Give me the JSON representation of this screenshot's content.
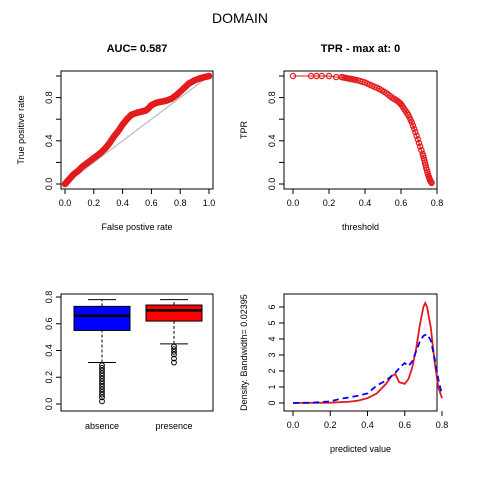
{
  "figure": {
    "title": "DOMAIN"
  },
  "chart_data": [
    {
      "id": "roc",
      "type": "line",
      "title": "AUC= 0.587",
      "xlabel": "False postive rate",
      "ylabel": "True positive rate",
      "xlim": [
        0,
        1
      ],
      "ylim": [
        0,
        1
      ],
      "xticks": [
        "0.0",
        "0.2",
        "0.4",
        "0.6",
        "0.8",
        "1.0"
      ],
      "yticks": [
        "0.0",
        "0.4",
        "0.8"
      ],
      "series": [
        {
          "role": "roc-curve",
          "color": "#e31a1c",
          "x": [
            0.0,
            0.02,
            0.04,
            0.06,
            0.09,
            0.12,
            0.16,
            0.2,
            0.24,
            0.28,
            0.31,
            0.34,
            0.37,
            0.4,
            0.43,
            0.46,
            0.5,
            0.53,
            0.56,
            0.58,
            0.6,
            0.63,
            0.66,
            0.7,
            0.74,
            0.78,
            0.82,
            0.86,
            0.9,
            0.94,
            0.97,
            1.0
          ],
          "y": [
            0.0,
            0.03,
            0.06,
            0.09,
            0.12,
            0.16,
            0.2,
            0.24,
            0.28,
            0.33,
            0.38,
            0.44,
            0.49,
            0.55,
            0.6,
            0.64,
            0.66,
            0.67,
            0.68,
            0.7,
            0.73,
            0.75,
            0.76,
            0.77,
            0.79,
            0.83,
            0.88,
            0.93,
            0.96,
            0.98,
            0.99,
            1.0
          ]
        },
        {
          "role": "diagonal",
          "color": "#bebebe",
          "x": [
            0,
            1
          ],
          "y": [
            0,
            1
          ]
        }
      ]
    },
    {
      "id": "tpr",
      "type": "scatter",
      "title": "TPR - max at: 0",
      "xlabel": "threshold",
      "ylabel": "TPR",
      "xlim": [
        0,
        0.8
      ],
      "ylim": [
        0,
        1
      ],
      "xticks": [
        "0.0",
        "0.2",
        "0.4",
        "0.6",
        "0.8"
      ],
      "yticks": [
        "0.0",
        "0.4",
        "0.8"
      ],
      "series": [
        {
          "color": "#e31a1c",
          "x": [
            0.0,
            0.1,
            0.13,
            0.16,
            0.2,
            0.24,
            0.27,
            0.3,
            0.33,
            0.36,
            0.4,
            0.44,
            0.48,
            0.52,
            0.55,
            0.58,
            0.6,
            0.62,
            0.64,
            0.66,
            0.68,
            0.7,
            0.72,
            0.73,
            0.74,
            0.75,
            0.76,
            0.77
          ],
          "y": [
            1.0,
            1.0,
            1.0,
            1.0,
            1.0,
            0.99,
            0.99,
            0.98,
            0.97,
            0.96,
            0.94,
            0.91,
            0.88,
            0.84,
            0.8,
            0.77,
            0.74,
            0.69,
            0.64,
            0.57,
            0.48,
            0.38,
            0.28,
            0.22,
            0.15,
            0.09,
            0.04,
            0.01
          ]
        }
      ]
    },
    {
      "id": "boxplot",
      "type": "box",
      "categories": [
        "absence",
        "presence"
      ],
      "ylim": [
        0,
        0.8
      ],
      "yticks": [
        "0.0",
        "0.2",
        "0.4",
        "0.6",
        "0.8"
      ],
      "boxes": [
        {
          "name": "absence",
          "color": "#0000ff",
          "whisker_low": 0.31,
          "q1": 0.55,
          "median": 0.66,
          "q3": 0.73,
          "whisker_high": 0.78,
          "outliers": [
            0.29,
            0.27,
            0.25,
            0.23,
            0.21,
            0.19,
            0.17,
            0.15,
            0.13,
            0.11,
            0.09,
            0.07,
            0.05,
            0.02
          ]
        },
        {
          "name": "presence",
          "color": "#ff0000",
          "whisker_low": 0.45,
          "q1": 0.62,
          "median": 0.7,
          "q3": 0.74,
          "whisker_high": 0.78,
          "outliers": [
            0.43,
            0.41,
            0.39,
            0.37,
            0.34,
            0.31
          ]
        }
      ]
    },
    {
      "id": "density",
      "type": "line",
      "xlabel": "predicted value",
      "ylabel": "Density. Bandwidth= 0.02395",
      "xlim": [
        0,
        0.8
      ],
      "ylim": [
        0,
        6.5
      ],
      "xticks": [
        "0.0",
        "0.2",
        "0.4",
        "0.6",
        "0.8"
      ],
      "yticks": [
        "0",
        "1",
        "2",
        "3",
        "4",
        "5",
        "6"
      ],
      "series": [
        {
          "role": "presence",
          "color": "#e31a1c",
          "dash": false,
          "x": [
            0.0,
            0.2,
            0.3,
            0.35,
            0.4,
            0.45,
            0.5,
            0.53,
            0.55,
            0.57,
            0.6,
            0.62,
            0.64,
            0.66,
            0.68,
            0.7,
            0.71,
            0.72,
            0.74,
            0.76,
            0.78,
            0.8
          ],
          "y": [
            0.0,
            0.02,
            0.08,
            0.15,
            0.3,
            0.6,
            1.2,
            1.7,
            1.8,
            1.3,
            1.2,
            1.5,
            2.2,
            3.3,
            4.8,
            6.0,
            6.25,
            6.0,
            4.7,
            2.6,
            1.0,
            0.3
          ]
        },
        {
          "role": "absence",
          "color": "#0000ff",
          "dash": true,
          "x": [
            0.0,
            0.1,
            0.2,
            0.25,
            0.3,
            0.35,
            0.4,
            0.45,
            0.5,
            0.55,
            0.58,
            0.6,
            0.62,
            0.64,
            0.66,
            0.68,
            0.7,
            0.72,
            0.74,
            0.76,
            0.78,
            0.8
          ],
          "y": [
            0.0,
            0.02,
            0.1,
            0.25,
            0.35,
            0.45,
            0.6,
            1.1,
            1.4,
            1.9,
            2.3,
            2.5,
            2.3,
            2.6,
            3.2,
            3.8,
            4.2,
            4.3,
            3.9,
            2.8,
            1.5,
            0.5
          ]
        }
      ]
    }
  ]
}
